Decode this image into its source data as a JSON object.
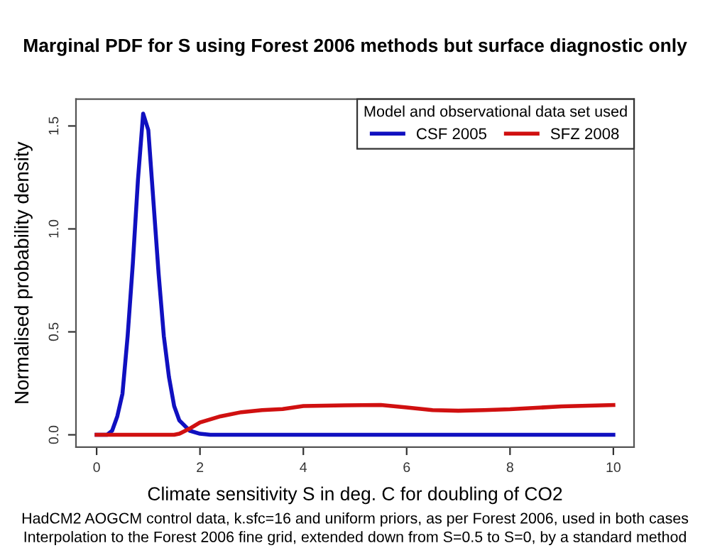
{
  "chart_data": {
    "type": "line",
    "title": "Marginal PDF for S using Forest 2006 methods but surface diagnostic only",
    "xlabel": "Climate sensitivity S in deg. C for doubling of CO2",
    "ylabel": "Normalised probability density",
    "legend_title": "Model and observational data set used",
    "legend": "top right",
    "grid": false,
    "marker": "none",
    "line_style": "solid",
    "xlim": [
      -0.4,
      10.4
    ],
    "ylim": [
      -0.06,
      1.63
    ],
    "xticks": [
      0,
      2,
      4,
      6,
      8,
      10
    ],
    "yticks": [
      {
        "value": 0,
        "label": "0.0"
      },
      {
        "value": 0.5,
        "label": "0.5"
      },
      {
        "value": 1,
        "label": "1.0"
      },
      {
        "value": 1.5,
        "label": "1.5"
      }
    ],
    "series": [
      {
        "name": "CSF 2005",
        "color": "#1010c0",
        "x": [
          0,
          0.2,
          0.3,
          0.4,
          0.5,
          0.6,
          0.7,
          0.8,
          0.9,
          1.0,
          1.1,
          1.2,
          1.3,
          1.4,
          1.5,
          1.6,
          1.8,
          2.0,
          2.2,
          3,
          4,
          5,
          6,
          7,
          8,
          9,
          10
        ],
        "values": [
          0,
          0,
          0.02,
          0.09,
          0.2,
          0.48,
          0.83,
          1.24,
          1.56,
          1.48,
          1.13,
          0.78,
          0.48,
          0.28,
          0.14,
          0.07,
          0.02,
          0.005,
          0,
          0,
          0,
          0,
          0,
          0,
          0,
          0,
          0
        ]
      },
      {
        "name": "SFZ 2008",
        "color": "#d01010",
        "x": [
          0,
          0.5,
          1.0,
          1.5,
          1.6,
          1.8,
          2.0,
          2.4,
          2.8,
          3.2,
          3.6,
          4.0,
          4.8,
          5.5,
          6.0,
          6.5,
          7.0,
          7.5,
          8.0,
          9.0,
          10.0
        ],
        "values": [
          0,
          0,
          0,
          0,
          0.005,
          0.03,
          0.06,
          0.09,
          0.11,
          0.12,
          0.125,
          0.14,
          0.143,
          0.145,
          0.133,
          0.12,
          0.117,
          0.12,
          0.124,
          0.138,
          0.145
        ]
      }
    ],
    "annotations": [
      "HadCM2 AOGCM control data, k.sfc=16 and uniform priors, as per Forest 2006, used in both cases",
      "Interpolation to the Forest 2006 fine grid, extended down from S=0.5 to S=0, by a standard method"
    ]
  }
}
